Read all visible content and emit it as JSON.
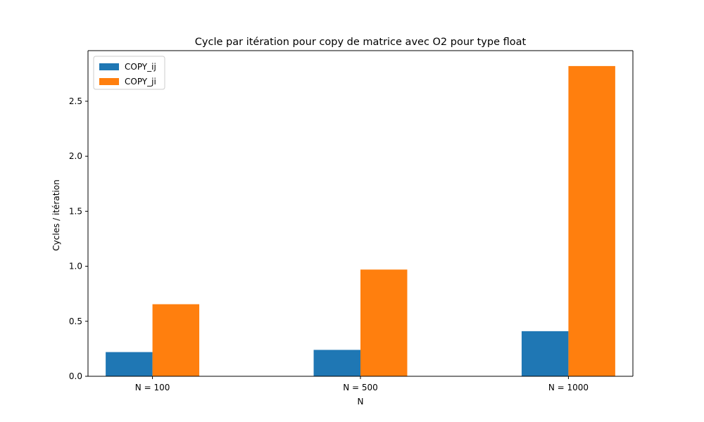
{
  "chart_data": {
    "type": "bar",
    "title": "Cycle par itération pour copy de matrice avec O2 pour type float",
    "xlabel": "N",
    "ylabel": "Cycles / itération",
    "categories": [
      "N = 100",
      "N = 500",
      "N = 1000"
    ],
    "series": [
      {
        "name": "COPY_ij",
        "color": "#1f77b4",
        "values": [
          0.22,
          0.24,
          0.41
        ]
      },
      {
        "name": "COPY_ji",
        "color": "#ff7f0e",
        "values": [
          0.655,
          0.97,
          2.82
        ]
      }
    ],
    "ylim": [
      0,
      2.96
    ],
    "yticks": [
      0.0,
      0.5,
      1.0,
      1.5,
      2.0,
      2.5
    ],
    "ytick_labels": [
      "0.0",
      "0.5",
      "1.0",
      "1.5",
      "2.0",
      "2.5"
    ],
    "grid": false,
    "legend_position": "top-left"
  }
}
